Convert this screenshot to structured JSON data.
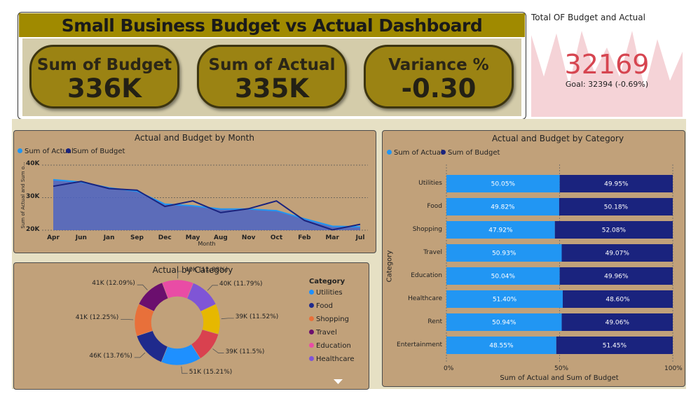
{
  "header": {
    "title": "Small Business Budget vs Actual Dashboard",
    "kpis": [
      {
        "label": "Sum of Budget",
        "value": "336K"
      },
      {
        "label": "Sum of Actual",
        "value": "335K"
      },
      {
        "label": "Variance %",
        "value": "-0.30"
      }
    ]
  },
  "goal_card": {
    "title": "Total OF Budget and Actual",
    "value": "32169",
    "indicator": "!",
    "goal_text": "Goal: 32394 (-0.69%)",
    "sparkline": [
      10,
      60,
      8,
      70,
      5,
      55,
      25,
      60,
      5,
      75,
      15,
      65,
      30
    ],
    "colors": {
      "value": "#d64550",
      "sparkline": "#f5d3d7"
    }
  },
  "colors": {
    "actual": "#2196f3",
    "budget": "#1a237e",
    "panel_bg": "#c1a17a",
    "title_bar": "#a08a00",
    "kpi_bg": "#9b8313"
  },
  "month_chart": {
    "title": "Actual and Budget by Month",
    "legend": [
      "Sum of Actual",
      "Sum of Budget"
    ],
    "xlabel": "Month",
    "ylabel": "Sum of Actual and Sum o...",
    "ytick_labels": [
      "40K",
      "30K",
      "20K"
    ]
  },
  "category_chart": {
    "title": "Actual and Budget by Category",
    "legend": [
      "Sum of Actual",
      "Sum of Budget"
    ],
    "xlabel": "Sum of Actual and Sum of Budget",
    "ylabel": "Category",
    "xtick_labels": [
      "0%",
      "50%",
      "100%"
    ]
  },
  "donut_chart": {
    "title": "Actual by Category",
    "legend_title": "Category",
    "legend": [
      {
        "name": "Utilities",
        "color": "#1e90ff"
      },
      {
        "name": "Food",
        "color": "#1f2a8c"
      },
      {
        "name": "Shopping",
        "color": "#e8703a"
      },
      {
        "name": "Travel",
        "color": "#6b0f6e"
      },
      {
        "name": "Education",
        "color": "#e94ca5"
      },
      {
        "name": "Healthcare",
        "color": "#7f55d6"
      }
    ],
    "scroll_icon": "chevron-down-icon"
  },
  "chart_data": [
    {
      "type": "area",
      "title": "Actual and Budget by Month",
      "categories": [
        "Apr",
        "Jun",
        "Jan",
        "Sep",
        "Dec",
        "May",
        "Aug",
        "Nov",
        "Oct",
        "Feb",
        "Mar",
        "Jul"
      ],
      "series": [
        {
          "name": "Sum of Actual",
          "values": [
            35500,
            34800,
            33000,
            32000,
            28000,
            27500,
            26500,
            26500,
            26000,
            23500,
            21200,
            21000
          ]
        },
        {
          "name": "Sum of Budget",
          "values": [
            33500,
            35000,
            32800,
            32300,
            27300,
            29000,
            25400,
            26600,
            29000,
            23000,
            20100,
            21800
          ]
        }
      ],
      "xlabel": "Month",
      "ylabel": "Sum of Actual and Sum o...",
      "ylim": [
        20000,
        40000
      ],
      "yticks": [
        20000,
        30000,
        40000
      ],
      "grid": true,
      "legend": "top-left"
    },
    {
      "type": "bar",
      "orientation": "horizontal",
      "stacked": "100%",
      "title": "Actual and Budget by Category",
      "categories": [
        "Utilities",
        "Food",
        "Shopping",
        "Travel",
        "Education",
        "Healthcare",
        "Rent",
        "Entertainment"
      ],
      "series": [
        {
          "name": "Sum of Actual",
          "values": [
            50.05,
            49.82,
            47.92,
            50.93,
            50.04,
            51.4,
            50.94,
            48.55
          ],
          "labels": [
            "50.05%",
            "49.82%",
            "47.92%",
            "50.93%",
            "50.04%",
            "51.40%",
            "50.94%",
            "48.55%"
          ]
        },
        {
          "name": "Sum of Budget",
          "values": [
            49.95,
            50.18,
            52.08,
            49.07,
            49.96,
            48.6,
            49.06,
            51.45
          ],
          "labels": [
            "49.95%",
            "50.18%",
            "52.08%",
            "49.07%",
            "49.96%",
            "48.60%",
            "49.06%",
            "51.45%"
          ]
        }
      ],
      "xlabel": "Sum of Actual and Sum of Budget",
      "ylabel": "Category",
      "xlim": [
        0,
        100
      ],
      "legend": "top-left"
    },
    {
      "type": "pie",
      "donut": true,
      "title": "Actual by Category",
      "slices": [
        {
          "label": "40K (11.79%)",
          "value": 11.79,
          "color": "#7f55d6"
        },
        {
          "label": "39K (11.52%)",
          "value": 11.52,
          "color": "#e6b800"
        },
        {
          "label": "39K (11.5%)",
          "value": 11.5,
          "color": "#d9414f"
        },
        {
          "label": "51K (15.21%)",
          "value": 15.21,
          "color": "#1e90ff"
        },
        {
          "label": "46K (13.76%)",
          "value": 13.76,
          "color": "#1f2a8c"
        },
        {
          "label": "41K (12.25%)",
          "value": 12.25,
          "color": "#e8703a"
        },
        {
          "label": "41K (12.09%)",
          "value": 12.09,
          "color": "#6b0f6e"
        },
        {
          "label": "40K (11.88%)",
          "value": 11.88,
          "color": "#e94ca5"
        }
      ]
    }
  ]
}
